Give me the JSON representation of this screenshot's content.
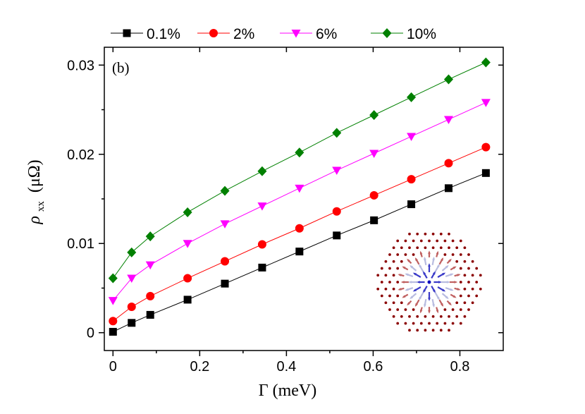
{
  "chart_data": {
    "type": "line",
    "panel_label": "(b)",
    "xlabel": "Γ (meV)",
    "ylabel_symbol": "ρ",
    "ylabel_subscript": "xx",
    "ylabel_unit": "(μΩ)",
    "xlim": [
      -0.02,
      0.9
    ],
    "ylim": [
      -0.002,
      0.032
    ],
    "xticks": [
      0,
      0.2,
      0.4,
      0.6,
      0.8
    ],
    "xtick_labels": [
      "0",
      "0.2",
      "0.4",
      "0.6",
      "0.8"
    ],
    "yticks": [
      0,
      0.01,
      0.02,
      0.03
    ],
    "ytick_labels": [
      "0",
      "0.01",
      "0.02",
      "0.03"
    ],
    "legend_position": "top",
    "grid": false,
    "x": [
      0,
      0.043,
      0.086,
      0.172,
      0.258,
      0.344,
      0.43,
      0.516,
      0.602,
      0.688,
      0.774,
      0.86
    ],
    "series": [
      {
        "name": "0.1%",
        "color": "#000000",
        "marker": "square",
        "values": [
          0.0001,
          0.0011,
          0.002,
          0.0037,
          0.0055,
          0.0073,
          0.0091,
          0.0109,
          0.0126,
          0.0144,
          0.0162,
          0.0179
        ]
      },
      {
        "name": "2%",
        "color": "#ff0000",
        "marker": "circle",
        "values": [
          0.0013,
          0.0029,
          0.0041,
          0.0061,
          0.008,
          0.0099,
          0.0117,
          0.0136,
          0.0154,
          0.0172,
          0.019,
          0.0208
        ]
      },
      {
        "name": "6%",
        "color": "#ff00ff",
        "marker": "triangle-down",
        "values": [
          0.0036,
          0.0061,
          0.0076,
          0.01,
          0.0122,
          0.0142,
          0.0162,
          0.0182,
          0.0201,
          0.022,
          0.0239,
          0.0258
        ]
      },
      {
        "name": "10%",
        "color": "#008000",
        "marker": "diamond",
        "values": [
          0.0061,
          0.009,
          0.0108,
          0.0135,
          0.0159,
          0.0181,
          0.0202,
          0.0224,
          0.0244,
          0.0264,
          0.0284,
          0.0303
        ]
      }
    ],
    "inset": {
      "description_icon": "skyrmion-spin-texture",
      "dot_color": "#8b0000"
    }
  }
}
